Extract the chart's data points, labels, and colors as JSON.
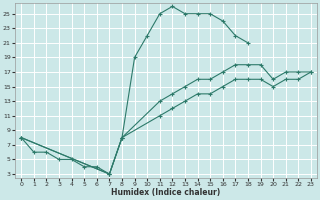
{
  "xlabel": "Humidex (Indice chaleur)",
  "bg_color": "#cce8e8",
  "line_color": "#2d7a6a",
  "grid_color": "#ffffff",
  "xlim": [
    -0.5,
    23.5
  ],
  "ylim": [
    2.5,
    26.5
  ],
  "xticks": [
    0,
    1,
    2,
    3,
    4,
    5,
    6,
    7,
    8,
    9,
    10,
    11,
    12,
    13,
    14,
    15,
    16,
    17,
    18,
    19,
    20,
    21,
    22,
    23
  ],
  "yticks": [
    3,
    5,
    7,
    9,
    11,
    13,
    15,
    17,
    19,
    21,
    23,
    25
  ],
  "lines": [
    {
      "x": [
        0,
        1,
        2,
        3,
        4,
        5,
        6,
        7,
        8,
        9,
        10,
        11,
        12,
        13,
        14,
        15,
        16,
        17,
        18
      ],
      "y": [
        8,
        6,
        6,
        5,
        5,
        4,
        4,
        3,
        8,
        19,
        22,
        25,
        26,
        25,
        25,
        25,
        24,
        22,
        21
      ]
    },
    {
      "x": [
        0,
        7,
        8,
        11,
        12,
        13,
        14,
        15,
        16,
        17,
        18,
        19,
        20,
        21,
        22,
        23
      ],
      "y": [
        8,
        3,
        8,
        13,
        14,
        15,
        16,
        16,
        17,
        18,
        18,
        18,
        16,
        17,
        17,
        17
      ]
    },
    {
      "x": [
        0,
        7,
        8,
        11,
        12,
        13,
        14,
        15,
        16,
        17,
        18,
        19,
        20,
        21,
        22,
        23
      ],
      "y": [
        8,
        3,
        8,
        11,
        12,
        13,
        14,
        14,
        15,
        16,
        16,
        16,
        15,
        16,
        16,
        17
      ]
    }
  ]
}
